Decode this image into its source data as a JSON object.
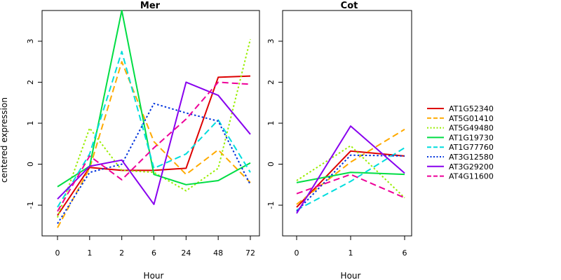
{
  "chart_data": [
    {
      "type": "line",
      "title": "Mer",
      "xlabel": "Hour",
      "ylabel": "centered expression",
      "categories": [
        "0",
        "1",
        "2",
        "6",
        "24",
        "48",
        "72"
      ],
      "ylim": [
        -1.75,
        3.75
      ],
      "yticks": [
        "-1",
        "0",
        "1",
        "2",
        "3"
      ],
      "series": [
        {
          "name": "AT1G52340",
          "color": "#dd0000",
          "dash": "solid",
          "values": [
            -1.25,
            -0.08,
            -0.15,
            -0.15,
            -0.1,
            2.12,
            2.15
          ]
        },
        {
          "name": "AT5G01410",
          "color": "#ffaa00",
          "dash": "dashed",
          "values": [
            -1.55,
            -0.1,
            2.5,
            0.55,
            -0.25,
            0.35,
            -0.45
          ]
        },
        {
          "name": "AT5G49480",
          "color": "#99ee00",
          "dash": "dotted",
          "values": [
            -1.3,
            0.88,
            -0.15,
            -0.2,
            -0.65,
            -0.1,
            3.05
          ]
        },
        {
          "name": "AT1G19730",
          "color": "#00dd44",
          "dash": "solid",
          "values": [
            -0.55,
            -0.05,
            3.75,
            -0.25,
            -0.5,
            -0.4,
            0.03
          ]
        },
        {
          "name": "AT1G77760",
          "color": "#00dddd",
          "dash": "dashed",
          "values": [
            -1.05,
            0.25,
            2.75,
            -0.1,
            0.25,
            1.08,
            -0.2
          ]
        },
        {
          "name": "AT3G12580",
          "color": "#0033dd",
          "dash": "dotted",
          "values": [
            -1.45,
            -0.2,
            0.0,
            1.48,
            1.25,
            1.05,
            -0.5
          ]
        },
        {
          "name": "AT3G29200",
          "color": "#8800ee",
          "dash": "solid",
          "values": [
            -0.85,
            -0.05,
            0.1,
            -0.98,
            2.0,
            1.68,
            0.73
          ]
        },
        {
          "name": "AT4G11600",
          "color": "#ee0099",
          "dash": "dashed",
          "values": [
            -1.15,
            0.2,
            -0.38,
            0.4,
            1.1,
            2.0,
            1.95
          ]
        }
      ]
    },
    {
      "type": "line",
      "title": "Cot",
      "xlabel": "Hour",
      "ylabel": "",
      "categories": [
        "0",
        "1",
        "6"
      ],
      "ylim": [
        -1.75,
        3.75
      ],
      "yticks": [
        "-1",
        "0",
        "1",
        "2",
        "3"
      ],
      "series": [
        {
          "name": "AT1G52340",
          "color": "#dd0000",
          "dash": "solid",
          "values": [
            -1.05,
            0.32,
            0.2
          ]
        },
        {
          "name": "AT5G01410",
          "color": "#ffaa00",
          "dash": "dashed",
          "values": [
            -0.98,
            0.05,
            0.85
          ]
        },
        {
          "name": "AT5G49480",
          "color": "#99ee00",
          "dash": "dotted",
          "values": [
            -0.4,
            0.45,
            -0.82
          ]
        },
        {
          "name": "AT1G19730",
          "color": "#00dd44",
          "dash": "solid",
          "values": [
            -0.45,
            -0.2,
            -0.25
          ]
        },
        {
          "name": "AT1G77760",
          "color": "#00dddd",
          "dash": "dashed",
          "values": [
            -1.12,
            -0.42,
            0.4
          ]
        },
        {
          "name": "AT3G12580",
          "color": "#0033dd",
          "dash": "dotted",
          "values": [
            -1.15,
            0.22,
            0.2
          ]
        },
        {
          "name": "AT3G29200",
          "color": "#8800ee",
          "dash": "solid",
          "values": [
            -1.2,
            0.93,
            -0.22
          ]
        },
        {
          "name": "AT4G11600",
          "color": "#ee0099",
          "dash": "dashed",
          "values": [
            -0.72,
            -0.25,
            -0.82
          ]
        }
      ]
    }
  ],
  "legend": {
    "position": "right",
    "items": [
      "AT1G52340",
      "AT5G01410",
      "AT5G49480",
      "AT1G19730",
      "AT1G77760",
      "AT3G12580",
      "AT3G29200",
      "AT4G11600"
    ]
  }
}
